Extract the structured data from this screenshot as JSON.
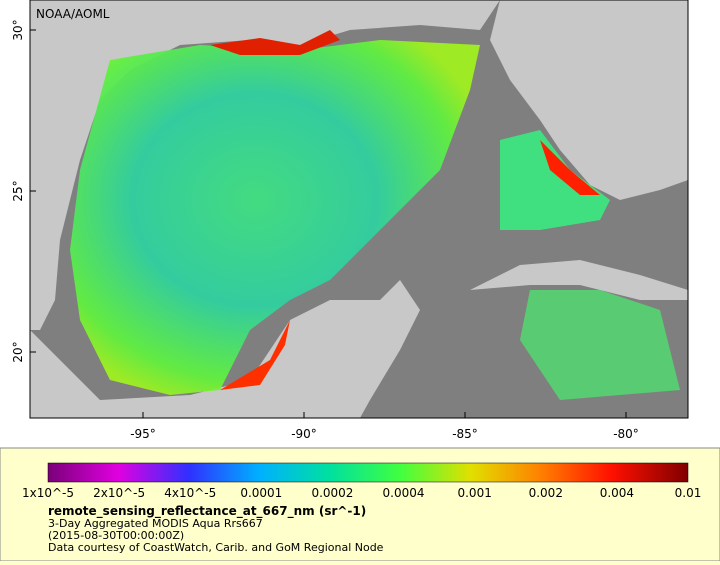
{
  "map": {
    "credit": "NOAA/AOML",
    "lat_ticks": [
      "30°",
      "25°",
      "20°"
    ],
    "lon_ticks": [
      "-95°",
      "-90°",
      "-85°",
      "-80°"
    ]
  },
  "colorbar": {
    "labels": [
      "1x10^-5",
      "2x10^-5",
      "4x10^-5",
      "0.0001",
      "0.0002",
      "0.0004",
      "0.001",
      "0.002",
      "0.004",
      "0.01"
    ]
  },
  "legend": {
    "title": "remote_sensing_reflectance_at_667_nm (sr^-1)",
    "lines": [
      "3-Day Aggregated MODIS Aqua Rrs667",
      "(2015-08-30T00:00:00Z)",
      "Data courtesy of CoastWatch, Carib. and GoM Regional Node"
    ]
  }
}
